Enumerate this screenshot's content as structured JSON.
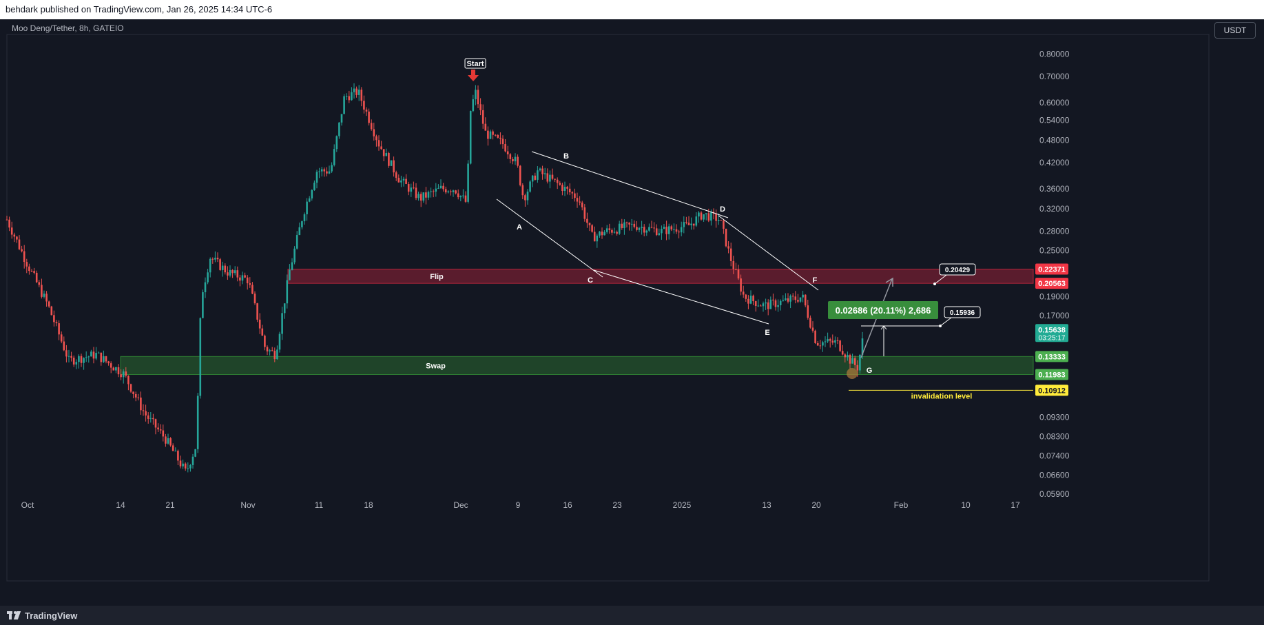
{
  "publish_header": "behdark published on TradingView.com, Jan 26, 2025 14:34 UTC-6",
  "symbol_title": "Moo Deng/Tether, 8h, GATEIO",
  "currency_button": "USDT",
  "brand": "TradingView",
  "chart_data": {
    "type": "candlestick",
    "price_axis_labels": [
      "0.80000",
      "0.70000",
      "0.60000",
      "0.54000",
      "0.48000",
      "0.42000",
      "0.36000",
      "0.32000",
      "0.28000",
      "0.25000",
      "0.19000",
      "0.17000",
      "0.09300",
      "0.08300",
      "0.07400",
      "0.06600",
      "0.05900"
    ],
    "time_axis_labels": [
      "Oct",
      "14",
      "21",
      "Nov",
      "11",
      "18",
      "Dec",
      "9",
      "16",
      "23",
      "2025",
      "13",
      "20",
      "Feb",
      "10",
      "17"
    ],
    "price_tags": [
      {
        "label": "0.22371",
        "color": "#f23645"
      },
      {
        "label": "0.20563",
        "color": "#f23645"
      },
      {
        "label": "0.15638",
        "sublabel": "03:25:17",
        "color": "#22ab94"
      },
      {
        "label": "0.13333",
        "color": "#4caf50"
      },
      {
        "label": "0.11983",
        "color": "#4caf50"
      },
      {
        "label": "0.10912",
        "color": "#ffeb3b"
      }
    ],
    "zones": [
      {
        "name": "Flip",
        "top": 0.22371,
        "bottom": 0.20563,
        "color": "#b2243b"
      },
      {
        "name": "Swap",
        "top": 0.13333,
        "bottom": 0.11983,
        "color": "#2e7d32"
      }
    ],
    "annotations": {
      "start": "Start",
      "wave_labels": [
        "A",
        "B",
        "C",
        "D",
        "E",
        "F",
        "G"
      ],
      "invalidation": "invalidation level",
      "measure": "0.02686 (20.11%) 2,686",
      "callout_upper": "0.20429",
      "callout_lower": "0.15936"
    }
  }
}
